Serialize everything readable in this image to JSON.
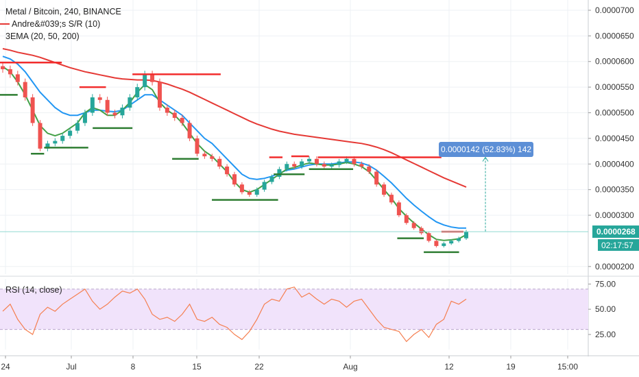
{
  "header": {
    "title": "Metal / Bitcoin, 240, BINANCE",
    "indicator1": "Andre&#039;s S/R (10)",
    "indicator2": "3EMA (20, 50, 200)",
    "rsi_title": "RSI (14, close)"
  },
  "colors": {
    "up": "#26a69a",
    "down": "#ef5350",
    "ema20": "#43a047",
    "ema50": "#2196f3",
    "ema200": "#e53935",
    "resistance": "#f22c2c",
    "support": "#2e7d32",
    "rsi": "#f57f50",
    "rsi_band": "#f1e3fb",
    "measure": "#5c8fd6",
    "current_line": "#8fd9d2"
  },
  "chart_data": [
    {
      "type": "candlestick",
      "title": "Metal / Bitcoin, 240, BINANCE",
      "x_ticks": [
        "24",
        "Jul",
        "8",
        "15",
        "22",
        "Aug",
        "12",
        "19",
        "15:00"
      ],
      "y_ticks": [
        "0.0000700",
        "0.0000650",
        "0.0000600",
        "0.0000550",
        "0.0000500",
        "0.0000450",
        "0.0000400",
        "0.0000350",
        "0.0000300",
        "0.0000268",
        "0.0000200"
      ],
      "ylim": [
        1.85e-05,
        7.2e-05
      ],
      "current_price": "0.0000268",
      "countdown": "02:17:57",
      "measure_label": "0.0000142 (52.83%) 142",
      "close_series": [
        5.85e-05,
        5.75e-05,
        5.6e-05,
        5.3e-05,
        4.8e-05,
        4.3e-05,
        4.4e-05,
        4.45e-05,
        4.55e-05,
        4.65e-05,
        4.8e-05,
        5e-05,
        5.3e-05,
        5.25e-05,
        5e-05,
        4.95e-05,
        5.1e-05,
        5.3e-05,
        5.5e-05,
        5.75e-05,
        5.6e-05,
        5.1e-05,
        5e-05,
        4.9e-05,
        4.8e-05,
        4.5e-05,
        4.2e-05,
        4.15e-05,
        4.1e-05,
        3.95e-05,
        3.8e-05,
        3.6e-05,
        3.45e-05,
        3.4e-05,
        3.5e-05,
        3.65e-05,
        3.75e-05,
        3.9e-05,
        4e-05,
        3.95e-05,
        4.05e-05,
        4.1e-05,
        4e-05,
        3.95e-05,
        3.98e-05,
        4.05e-05,
        4.1e-05,
        4e-05,
        3.95e-05,
        3.85e-05,
        3.6e-05,
        3.4e-05,
        3.25e-05,
        3e-05,
        2.85e-05,
        2.75e-05,
        2.65e-05,
        2.5e-05,
        2.4e-05,
        2.45e-05,
        2.5e-05,
        2.55e-05,
        2.68e-05
      ],
      "ema20": [
        5.9e-05,
        5.8e-05,
        5.6e-05,
        5.35e-05,
        5.05e-05,
        4.75e-05,
        4.6e-05,
        4.55e-05,
        4.6e-05,
        4.7e-05,
        4.8e-05,
        5e-05,
        5.1e-05,
        5.05e-05,
        4.95e-05,
        4.95e-05,
        5.05e-05,
        5.2e-05,
        5.4e-05,
        5.55e-05,
        5.45e-05,
        5.2e-05,
        5.05e-05,
        4.95e-05,
        4.8e-05,
        4.6e-05,
        4.4e-05,
        4.25e-05,
        4.15e-05,
        4e-05,
        3.85e-05,
        3.65e-05,
        3.5e-05,
        3.45e-05,
        3.5e-05,
        3.6e-05,
        3.7e-05,
        3.8e-05,
        3.9e-05,
        3.93e-05,
        3.98e-05,
        4.02e-05,
        4e-05,
        3.98e-05,
        3.98e-05,
        4e-05,
        4.03e-05,
        4e-05,
        3.95e-05,
        3.85e-05,
        3.68e-05,
        3.5e-05,
        3.33e-05,
        3.13e-05,
        2.98e-05,
        2.85e-05,
        2.73e-05,
        2.62e-05,
        2.53e-05,
        2.51e-05,
        2.52e-05,
        2.54e-05,
        2.62e-05
      ],
      "ema50": [
        6.1e-05,
        6.05e-05,
        5.95e-05,
        5.8e-05,
        5.6e-05,
        5.4e-05,
        5.25e-05,
        5.1e-05,
        5e-05,
        4.95e-05,
        4.95e-05,
        5e-05,
        5.05e-05,
        5.05e-05,
        5.03e-05,
        5.02e-05,
        5.05e-05,
        5.15e-05,
        5.25e-05,
        5.35e-05,
        5.35e-05,
        5.25e-05,
        5.15e-05,
        5.05e-05,
        4.95e-05,
        4.8e-05,
        4.65e-05,
        4.5e-05,
        4.4e-05,
        4.25e-05,
        4.1e-05,
        3.95e-05,
        3.8e-05,
        3.72e-05,
        3.7e-05,
        3.72e-05,
        3.76e-05,
        3.82e-05,
        3.88e-05,
        3.9e-05,
        3.94e-05,
        3.98e-05,
        4e-05,
        4e-05,
        4e-05,
        4.02e-05,
        4.04e-05,
        4.04e-05,
        4.02e-05,
        3.97e-05,
        3.88e-05,
        3.76e-05,
        3.63e-05,
        3.48e-05,
        3.33e-05,
        3.2e-05,
        3.08e-05,
        2.97e-05,
        2.87e-05,
        2.81e-05,
        2.77e-05,
        2.75e-05,
        2.75e-05
      ],
      "ema200": [
        6.25e-05,
        6.22e-05,
        6.18e-05,
        6.15e-05,
        6.12e-05,
        6.08e-05,
        6.03e-05,
        5.98e-05,
        5.93e-05,
        5.88e-05,
        5.84e-05,
        5.8e-05,
        5.77e-05,
        5.74e-05,
        5.71e-05,
        5.68e-05,
        5.66e-05,
        5.65e-05,
        5.64e-05,
        5.64e-05,
        5.63e-05,
        5.6e-05,
        5.56e-05,
        5.51e-05,
        5.46e-05,
        5.4e-05,
        5.33e-05,
        5.26e-05,
        5.19e-05,
        5.12e-05,
        5.05e-05,
        4.98e-05,
        4.91e-05,
        4.84e-05,
        4.78e-05,
        4.73e-05,
        4.68e-05,
        4.64e-05,
        4.61e-05,
        4.58e-05,
        4.56e-05,
        4.54e-05,
        4.52e-05,
        4.5e-05,
        4.48e-05,
        4.46e-05,
        4.44e-05,
        4.42e-05,
        4.4e-05,
        4.37e-05,
        4.33e-05,
        4.28e-05,
        4.22e-05,
        4.15e-05,
        4.08e-05,
        4.01e-05,
        3.94e-05,
        3.87e-05,
        3.8e-05,
        3.73e-05,
        3.67e-05,
        3.61e-05,
        3.55e-05
      ]
    },
    {
      "type": "line",
      "title": "RSI (14, close)",
      "y_ticks": [
        "75.00",
        "50.00",
        "25.00"
      ],
      "ylim": [
        10,
        80
      ],
      "band": [
        30,
        70
      ],
      "values": [
        48,
        55,
        40,
        30,
        25,
        45,
        52,
        48,
        55,
        60,
        65,
        70,
        58,
        50,
        55,
        62,
        68,
        66,
        70,
        60,
        45,
        40,
        42,
        38,
        45,
        55,
        40,
        38,
        42,
        35,
        32,
        25,
        20,
        28,
        40,
        55,
        60,
        58,
        70,
        72,
        62,
        66,
        60,
        55,
        60,
        58,
        52,
        58,
        60,
        50,
        40,
        32,
        30,
        28,
        18,
        25,
        30,
        22,
        35,
        40,
        58,
        55,
        60
      ]
    }
  ],
  "resistance_levels": [
    {
      "x0": 0,
      "x1": 14,
      "y": 5.98e-05
    },
    {
      "x0": 18,
      "x1": 24,
      "y": 5.5e-05
    },
    {
      "x0": 30,
      "x1": 50,
      "y": 5.75e-05
    },
    {
      "x0": 61,
      "x1": 64,
      "y": 4.13e-05
    },
    {
      "x0": 66,
      "x1": 70,
      "y": 4.15e-05
    },
    {
      "x0": 72,
      "x1": 100,
      "y": 4.13e-05
    },
    {
      "x0": 100,
      "x1": 105,
      "y": 2.68e-05
    }
  ],
  "support_levels": [
    {
      "x0": 0,
      "x1": 4,
      "y": 5.35e-05
    },
    {
      "x0": 7,
      "x1": 10,
      "y": 4.2e-05
    },
    {
      "x0": 10,
      "x1": 20,
      "y": 4.32e-05
    },
    {
      "x0": 21,
      "x1": 30,
      "y": 4.7e-05
    },
    {
      "x0": 39,
      "x1": 45,
      "y": 4.1e-05
    },
    {
      "x0": 48,
      "x1": 63,
      "y": 3.3e-05
    },
    {
      "x0": 62,
      "x1": 69,
      "y": 3.8e-05
    },
    {
      "x0": 70,
      "x1": 80,
      "y": 3.9e-05
    },
    {
      "x0": 90,
      "x1": 96,
      "y": 2.55e-05
    },
    {
      "x0": 96,
      "x1": 104,
      "y": 2.28e-05
    }
  ]
}
